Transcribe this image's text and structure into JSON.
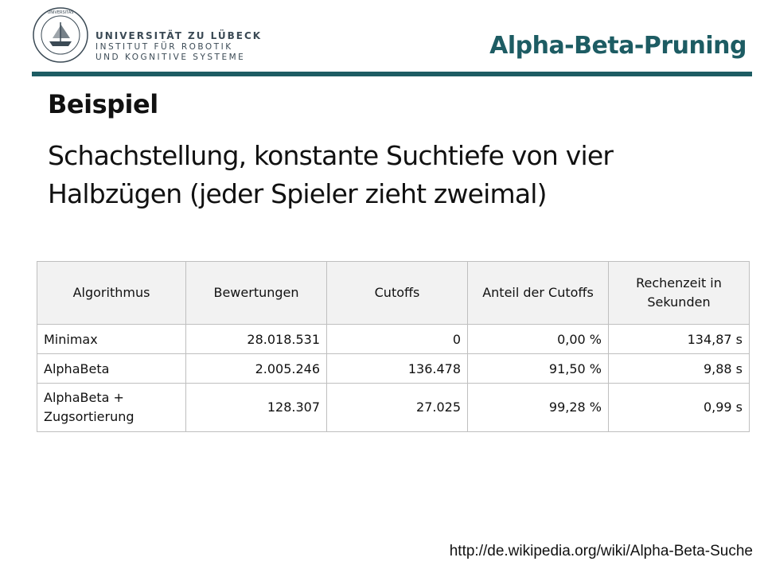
{
  "header": {
    "university_name": "UNIVERSITÄT ZU LÜBECK",
    "institute_line1": "INSTITUT FÜR ROBOTIK",
    "institute_line2": "UND KOGNITIVE SYSTEME",
    "slide_title": "Alpha-Beta-Pruning",
    "accent_color": "#1d5c63"
  },
  "content": {
    "heading": "Beispiel",
    "body": "Schachstellung, konstante Suchtiefe von vier Halbzügen (jeder Spieler zieht zweimal)"
  },
  "table": {
    "headers": [
      "Algorithmus",
      "Bewertungen",
      "Cutoffs",
      "Anteil der Cutoffs",
      "Rechenzeit in Sekunden"
    ],
    "rows": [
      [
        "Minimax",
        "28.018.531",
        "0",
        "0,00 %",
        "134,87 s"
      ],
      [
        "AlphaBeta",
        "2.005.246",
        "136.478",
        "91,50 %",
        "9,88 s"
      ],
      [
        "AlphaBeta + Zugsortierung",
        "128.307",
        "27.025",
        "99,28 %",
        "0,99 s"
      ]
    ]
  },
  "footer": {
    "source_url": "http://de.wikipedia.org/wiki/Alpha-Beta-Suche"
  }
}
